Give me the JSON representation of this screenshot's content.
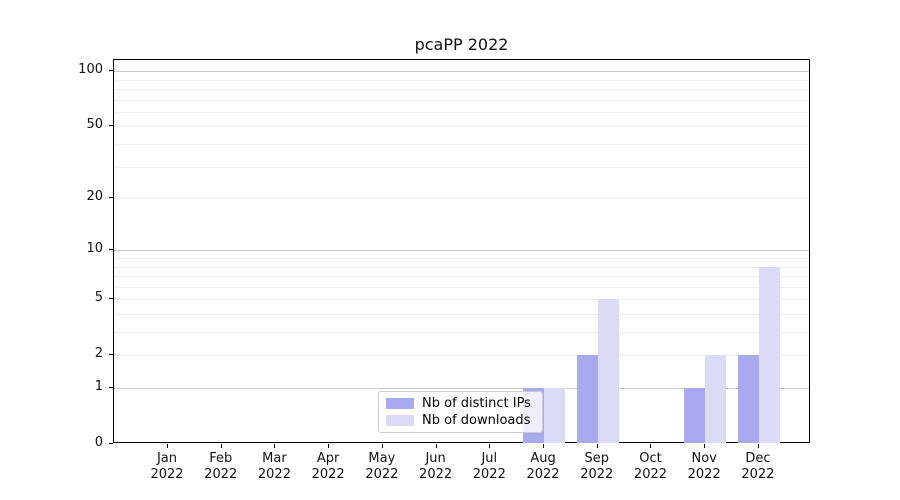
{
  "title": "pcaPP 2022",
  "colors": {
    "distinct_ips_bar": "#a9a9f0",
    "downloads_bar": "#dbdbf7",
    "grid_major": "#c9c9c9",
    "grid_minor": "#ededed",
    "axis": "#000000",
    "background": "#ffffff",
    "legend_border": "#cccccc"
  },
  "chart_data": {
    "type": "bar",
    "title": "pcaPP 2022",
    "categories": [
      "Jan\n2022",
      "Feb\n2022",
      "Mar\n2022",
      "Apr\n2022",
      "May\n2022",
      "Jun\n2022",
      "Jul\n2022",
      "Aug\n2022",
      "Sep\n2022",
      "Oct\n2022",
      "Nov\n2022",
      "Dec\n2022"
    ],
    "series": [
      {
        "name": "Nb of distinct IPs",
        "color": "#a9a9f0",
        "values": [
          0,
          0,
          0,
          0,
          0,
          0,
          0,
          1,
          2,
          0,
          1,
          2
        ]
      },
      {
        "name": "Nb of downloads",
        "color": "#dbdbf7",
        "values": [
          0,
          0,
          0,
          0,
          0,
          0,
          0,
          1,
          5,
          0,
          2,
          8
        ]
      }
    ],
    "xlabel": "",
    "ylabel": "",
    "y_scale": "log1p",
    "y_tick_values": [
      0,
      1,
      2,
      5,
      10,
      20,
      50,
      100
    ],
    "y_major_gridlines": [
      1,
      10,
      100
    ],
    "y_minor_gridlines": [
      2,
      3,
      4,
      5,
      6,
      7,
      8,
      9,
      20,
      30,
      40,
      50,
      60,
      70,
      80,
      90
    ],
    "ylim": [
      0,
      115
    ],
    "grid": true,
    "legend_position": "lower center inside plot"
  }
}
